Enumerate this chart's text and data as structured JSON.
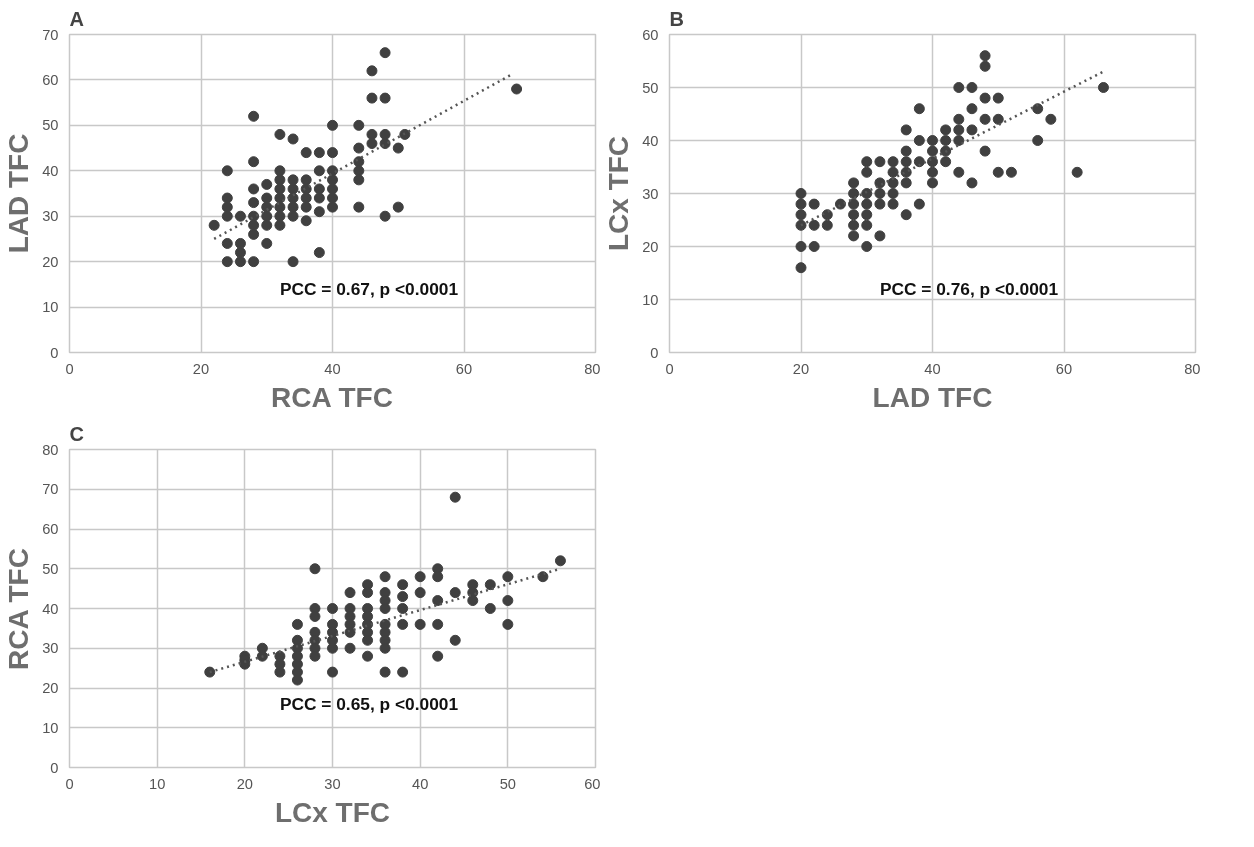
{
  "chart_data": [
    {
      "type": "scatter",
      "title": "A",
      "xlabel": "RCA TFC",
      "ylabel": "LAD TFC",
      "xlim": [
        0,
        80
      ],
      "ylim": [
        0,
        70
      ],
      "xticks": [
        0,
        20,
        40,
        60,
        80
      ],
      "yticks": [
        0,
        10,
        20,
        30,
        40,
        50,
        60,
        70
      ],
      "grid": true,
      "annotations": [
        "PCC = 0.67, p <0.0001"
      ],
      "series": [
        {
          "marker": "circle",
          "color": "#404040",
          "x": [
            22,
            24,
            24,
            24,
            24,
            24,
            24,
            26,
            26,
            26,
            26,
            28,
            28,
            28,
            28,
            28,
            28,
            28,
            28,
            30,
            30,
            30,
            30,
            30,
            30,
            32,
            32,
            32,
            32,
            32,
            32,
            32,
            32,
            34,
            34,
            34,
            34,
            34,
            34,
            34,
            36,
            36,
            36,
            36,
            36,
            36,
            38,
            38,
            38,
            38,
            38,
            38,
            40,
            40,
            40,
            40,
            40,
            40,
            40,
            44,
            44,
            44,
            44,
            44,
            44,
            46,
            46,
            46,
            46,
            48,
            48,
            48,
            48,
            48,
            50,
            50,
            51,
            68
          ],
          "values": [
            28,
            40,
            34,
            32,
            30,
            24,
            20,
            22,
            20,
            24,
            30,
            52,
            42,
            36,
            33,
            30,
            28,
            26,
            20,
            37,
            34,
            32,
            30,
            28,
            24,
            48,
            40,
            38,
            36,
            34,
            32,
            30,
            28,
            47,
            38,
            36,
            34,
            32,
            30,
            20,
            44,
            38,
            36,
            34,
            32,
            29,
            44,
            40,
            36,
            34,
            31,
            22,
            50,
            44,
            40,
            38,
            36,
            34,
            32,
            50,
            45,
            42,
            40,
            38,
            32,
            62,
            56,
            48,
            46,
            66,
            56,
            48,
            46,
            30,
            45,
            32,
            48,
            58
          ]
        },
        {
          "type": "line",
          "line_style": "dotted",
          "color": "#555555",
          "x": [
            22,
            67
          ],
          "values": [
            25,
            61
          ]
        }
      ]
    },
    {
      "type": "scatter",
      "title": "B",
      "xlabel": "LAD TFC",
      "ylabel": "LCx TFC",
      "xlim": [
        0,
        80
      ],
      "ylim": [
        0,
        60
      ],
      "xticks": [
        0,
        20,
        40,
        60,
        80
      ],
      "yticks": [
        0,
        10,
        20,
        30,
        40,
        50,
        60
      ],
      "grid": true,
      "annotations": [
        "PCC = 0.76, p <0.0001"
      ],
      "series": [
        {
          "marker": "circle",
          "color": "#404040",
          "x": [
            20,
            20,
            20,
            20,
            20,
            20,
            22,
            22,
            22,
            24,
            24,
            26,
            28,
            28,
            28,
            28,
            28,
            28,
            30,
            30,
            30,
            30,
            30,
            30,
            30,
            32,
            32,
            32,
            32,
            32,
            34,
            34,
            34,
            34,
            34,
            36,
            36,
            36,
            36,
            36,
            36,
            38,
            38,
            38,
            38,
            40,
            40,
            40,
            40,
            40,
            42,
            42,
            42,
            42,
            44,
            44,
            44,
            44,
            44,
            46,
            46,
            46,
            46,
            48,
            48,
            48,
            48,
            48,
            50,
            50,
            50,
            52,
            56,
            56,
            58,
            62,
            66
          ],
          "values": [
            30,
            28,
            26,
            24,
            20,
            16,
            28,
            24,
            20,
            26,
            24,
            28,
            32,
            30,
            28,
            26,
            24,
            22,
            36,
            34,
            30,
            28,
            26,
            24,
            20,
            36,
            32,
            30,
            28,
            22,
            36,
            34,
            32,
            30,
            28,
            42,
            38,
            36,
            34,
            32,
            26,
            46,
            40,
            36,
            28,
            40,
            38,
            36,
            34,
            32,
            42,
            40,
            38,
            36,
            50,
            44,
            42,
            40,
            34,
            50,
            46,
            42,
            32,
            56,
            54,
            48,
            44,
            38,
            48,
            44,
            34,
            34,
            46,
            40,
            44,
            34,
            50
          ]
        },
        {
          "type": "line",
          "line_style": "dotted",
          "color": "#555555",
          "x": [
            20,
            66
          ],
          "values": [
            24,
            53
          ]
        }
      ]
    },
    {
      "type": "scatter",
      "title": "C",
      "xlabel": "LCx TFC",
      "ylabel": "RCA TFC",
      "xlim": [
        0,
        60
      ],
      "ylim": [
        0,
        80
      ],
      "xticks": [
        0,
        10,
        20,
        30,
        40,
        50,
        60
      ],
      "yticks": [
        0,
        10,
        20,
        30,
        40,
        50,
        60,
        70,
        80
      ],
      "grid": true,
      "annotations": [
        "PCC = 0.65, p <0.0001"
      ],
      "series": [
        {
          "marker": "circle",
          "color": "#404040",
          "x": [
            16,
            20,
            20,
            20,
            22,
            22,
            24,
            24,
            24,
            26,
            26,
            26,
            26,
            26,
            26,
            26,
            28,
            28,
            28,
            28,
            28,
            28,
            28,
            30,
            30,
            30,
            30,
            30,
            30,
            32,
            32,
            32,
            32,
            32,
            32,
            34,
            34,
            34,
            34,
            34,
            34,
            34,
            34,
            36,
            36,
            36,
            36,
            36,
            36,
            36,
            36,
            36,
            38,
            38,
            38,
            38,
            38,
            40,
            40,
            40,
            42,
            42,
            42,
            42,
            42,
            44,
            44,
            44,
            46,
            46,
            46,
            48,
            48,
            50,
            50,
            50,
            54,
            56
          ],
          "values": [
            24,
            28,
            27,
            26,
            30,
            28,
            28,
            26,
            24,
            36,
            32,
            30,
            28,
            26,
            24,
            22,
            50,
            40,
            38,
            34,
            32,
            30,
            28,
            40,
            36,
            34,
            32,
            30,
            24,
            44,
            40,
            38,
            36,
            34,
            30,
            46,
            44,
            40,
            38,
            36,
            34,
            32,
            28,
            48,
            44,
            42,
            40,
            36,
            34,
            32,
            30,
            24,
            46,
            43,
            40,
            36,
            24,
            48,
            44,
            36,
            50,
            48,
            42,
            36,
            28,
            68,
            44,
            32,
            46,
            44,
            42,
            46,
            40,
            48,
            42,
            36,
            48,
            52
          ]
        },
        {
          "type": "line",
          "line_style": "dotted",
          "color": "#555555",
          "x": [
            16,
            56
          ],
          "values": [
            24,
            50
          ]
        }
      ]
    }
  ]
}
